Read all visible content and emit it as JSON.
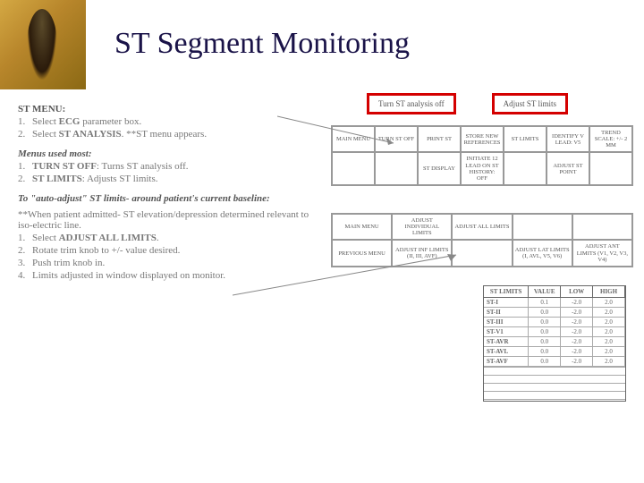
{
  "title": "ST Segment Monitoring",
  "left": {
    "stMenuLabel": "ST MENU:",
    "stMenu": [
      {
        "n": "1.",
        "text_pre": "Select ",
        "bold": "ECG",
        "text_post": " parameter box."
      },
      {
        "n": "2.",
        "text_pre": "Select ",
        "bold": "ST ANALYSIS",
        "text_post": ". **ST menu appears."
      }
    ],
    "menusUsedLabel": "Menus used most:",
    "menusUsed": [
      {
        "n": "1.",
        "bold": "TURN ST OFF",
        "text": ": Turns ST analysis off."
      },
      {
        "n": "2.",
        "bold": "ST LIMITS",
        "text": ": Adjusts ST limits."
      }
    ],
    "autoAdjustLabel": "To \"auto-adjust\" ST limits- around patient's current baseline:",
    "autoAdjustNote": "**When patient admitted- ST elevation/depression determined relevant to iso-electric line.",
    "autoAdjustSteps": [
      {
        "n": "1.",
        "text_pre": "Select ",
        "bold": "ADJUST ALL LIMITS",
        "text_post": "."
      },
      {
        "n": "2.",
        "text": "Rotate trim knob to +/- value desired."
      },
      {
        "n": "3.",
        "text": "Push trim knob in."
      },
      {
        "n": "4.",
        "text": "Limits adjusted in window displayed on monitor."
      }
    ]
  },
  "right": {
    "redBoxes": [
      "Turn ST analysis off",
      "Adjust ST limits"
    ],
    "menuRow1": [
      "MAIN MENU",
      "TURN ST OFF",
      "PRINT ST",
      "STORE NEW REFERENCES",
      "ST LIMITS",
      "IDENTIFY V LEAD: V5",
      "TREND SCALE: +/- 2 MM"
    ],
    "menuRow2": [
      "",
      "",
      "ST DISPLAY",
      "INITIATE 12 LEAD ON ST HISTORY: OFF",
      "",
      "ADJUST ST POINT",
      ""
    ],
    "menu2Row1": [
      "MAIN MENU",
      "ADJUST INDIVIDUAL LIMITS",
      "ADJUST ALL LIMITS",
      "",
      ""
    ],
    "menu2Row2": [
      "PREVIOUS MENU",
      "ADJUST INF LIMITS (II, III, AVF)",
      "",
      "ADJUST LAT LIMITS (I, AVL, V5, V6)",
      "ADJUST ANT LIMITS (V1, V2, V3, V4)"
    ],
    "limitsTable": {
      "headers": [
        "ST LIMITS",
        "VALUE",
        "LOW",
        "HIGH"
      ],
      "rows": [
        [
          "ST-I",
          "0.1",
          "-2.0",
          "2.0"
        ],
        [
          "ST-II",
          "0.0",
          "-2.0",
          "2.0"
        ],
        [
          "ST-III",
          "0.0",
          "-2.0",
          "2.0"
        ],
        [
          "ST-V1",
          "0.0",
          "-2.0",
          "2.0"
        ],
        [
          "ST-AVR",
          "0.0",
          "-2.0",
          "2.0"
        ],
        [
          "ST-AVL",
          "0.0",
          "-2.0",
          "2.0"
        ],
        [
          "ST-AVF",
          "0.0",
          "-2.0",
          "2.0"
        ]
      ]
    }
  },
  "colors": {
    "background": "#4a1f9e",
    "accent": "#d4a843",
    "redBox": "#d40000",
    "textMuted": "#666666"
  }
}
